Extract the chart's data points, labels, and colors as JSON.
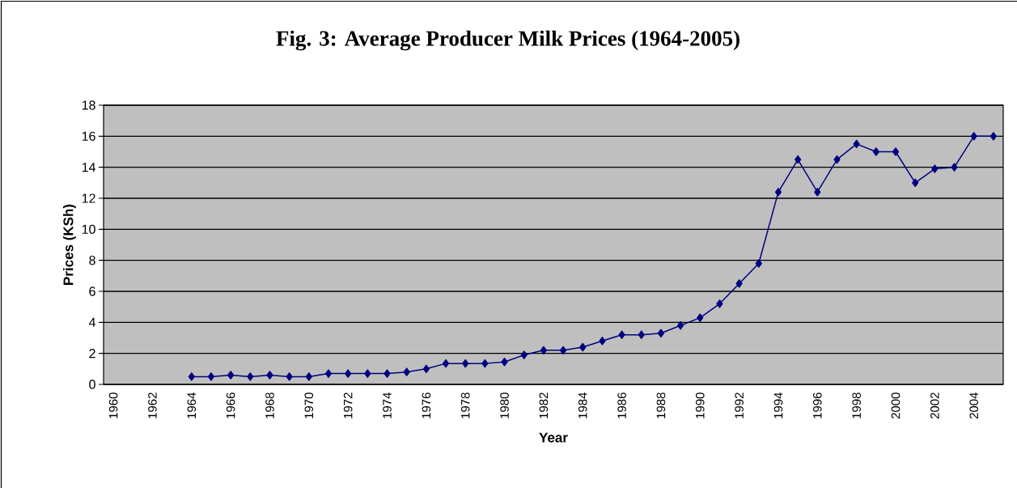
{
  "chart_data": {
    "type": "line",
    "title": "Fig. 3: Average Producer Milk Prices (1964-2005)",
    "xlabel": "Year",
    "ylabel": "Prices (KSh)",
    "categories": [
      "1960",
      null,
      "1962",
      null,
      "1964",
      null,
      "1966",
      null,
      "1968",
      null,
      "1970",
      null,
      "1972",
      null,
      "1974",
      null,
      "1976",
      null,
      "1978",
      null,
      "1980",
      null,
      "1982",
      null,
      "1984",
      null,
      "1986",
      null,
      "1988",
      null,
      "1990",
      null,
      "1992",
      null,
      "1994",
      null,
      "1996",
      null,
      "1998",
      null,
      "2000",
      null,
      "2002",
      null,
      "2004",
      null
    ],
    "series": [
      {
        "color": "#000080",
        "values": [
          null,
          null,
          null,
          null,
          0.5,
          0.5,
          0.6,
          0.5,
          0.6,
          0.5,
          0.5,
          0.7,
          0.7,
          0.7,
          0.7,
          0.8,
          1.0,
          1.35,
          1.35,
          1.35,
          1.45,
          1.9,
          2.2,
          2.2,
          2.4,
          2.8,
          3.2,
          3.2,
          3.3,
          3.8,
          4.3,
          5.2,
          6.5,
          7.8,
          12.4,
          14.5,
          12.4,
          14.5,
          15.5,
          15.0,
          15.0,
          13.0,
          13.9,
          14.0,
          16.0,
          16.0
        ]
      }
    ],
    "marker": "diamond",
    "line_style": "solid",
    "grid": "y",
    "ylim": [
      0,
      18
    ],
    "yticks": [
      0,
      2,
      4,
      6,
      8,
      10,
      12,
      14,
      16,
      18
    ]
  }
}
